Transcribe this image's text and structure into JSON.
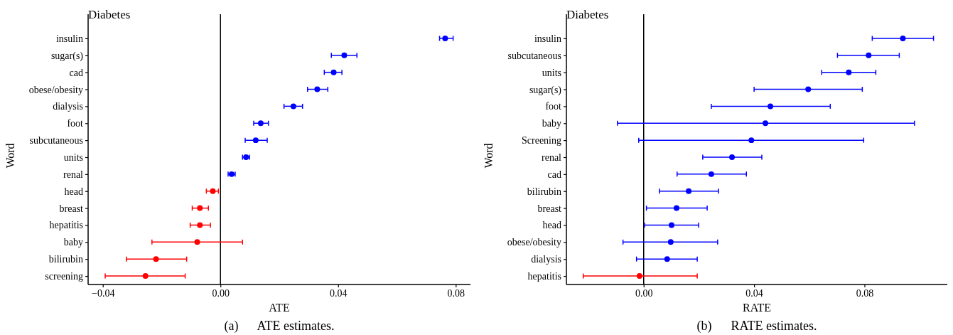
{
  "chart_data": [
    {
      "type": "scatter",
      "orientation": "horizontal",
      "marker": "circle",
      "title": "Diabetes",
      "xlabel": "ATE",
      "ylabel": "Word",
      "categories": [
        "insulin",
        "sugar(s)",
        "cad",
        "obese/obesity",
        "dialysis",
        "foot",
        "subcutaneous",
        "units",
        "renal",
        "head",
        "breast",
        "hepatitis",
        "baby",
        "bilirubin",
        "screening"
      ],
      "values": [
        0.0764,
        0.0421,
        0.0385,
        0.0329,
        0.0248,
        0.0137,
        0.012,
        0.0087,
        0.0038,
        -0.0026,
        -0.007,
        -0.007,
        -0.0079,
        -0.0219,
        -0.0255
      ],
      "errors": [
        [
          0.0745,
          0.0791
        ],
        [
          0.0377,
          0.0464
        ],
        [
          0.0353,
          0.0413
        ],
        [
          0.0296,
          0.0365
        ],
        [
          0.0216,
          0.0279
        ],
        [
          0.0113,
          0.0163
        ],
        [
          0.0084,
          0.0159
        ],
        [
          0.0075,
          0.0099
        ],
        [
          0.0026,
          0.005
        ],
        [
          -0.0048,
          -0.0007
        ],
        [
          -0.0096,
          -0.0041
        ],
        [
          -0.0103,
          -0.0034
        ],
        [
          -0.0233,
          0.0075
        ],
        [
          -0.032,
          -0.0115
        ],
        [
          -0.0392,
          -0.012
        ]
      ],
      "colors": [
        "#0000ff",
        "#0000ff",
        "#0000ff",
        "#0000ff",
        "#0000ff",
        "#0000ff",
        "#0000ff",
        "#0000ff",
        "#0000ff",
        "#ff0000",
        "#ff0000",
        "#ff0000",
        "#ff0000",
        "#ff0000",
        "#ff0000"
      ],
      "xlim": [
        -0.045,
        0.085
      ],
      "xticks": [
        {
          "value": -0.04,
          "label": "−0.04"
        },
        {
          "value": 0,
          "label": "0.00"
        },
        {
          "value": 0.04,
          "label": "0.04"
        },
        {
          "value": 0.08,
          "label": "0.08"
        }
      ],
      "ref_lines": [
        {
          "axis": "x",
          "value": 0,
          "color": "#000000"
        }
      ],
      "annotations": [
        "(a)      ATE estimates."
      ]
    },
    {
      "type": "scatter",
      "orientation": "horizontal",
      "marker": "circle",
      "title": "Diabetes",
      "xlabel": "RATE",
      "ylabel": "Word",
      "categories": [
        "insulin",
        "subcutaneous",
        "units",
        "sugar(s)",
        "foot",
        "baby",
        "Screening",
        "renal",
        "cad",
        "bilirubin",
        "breast",
        "head",
        "obese/obesity",
        "dialysis",
        "hepatitis"
      ],
      "values": [
        0.0939,
        0.0815,
        0.0743,
        0.0596,
        0.0459,
        0.0441,
        0.039,
        0.032,
        0.0245,
        0.0163,
        0.0119,
        0.0101,
        0.0098,
        0.0085,
        -0.0015
      ],
      "errors": [
        [
          0.0828,
          0.105
        ],
        [
          0.0702,
          0.0926
        ],
        [
          0.0645,
          0.0841
        ],
        [
          0.04,
          0.0792
        ],
        [
          0.0245,
          0.0676
        ],
        [
          -0.0095,
          0.0981
        ],
        [
          -0.0018,
          0.0797
        ],
        [
          0.0214,
          0.0428
        ],
        [
          0.0121,
          0.0372
        ],
        [
          0.0057,
          0.0271
        ],
        [
          0.001,
          0.023
        ],
        [
          0.0003,
          0.0199
        ],
        [
          -0.0075,
          0.0268
        ],
        [
          -0.0026,
          0.0194
        ],
        [
          -0.0219,
          0.0194
        ]
      ],
      "colors": [
        "#0000ff",
        "#0000ff",
        "#0000ff",
        "#0000ff",
        "#0000ff",
        "#0000ff",
        "#0000ff",
        "#0000ff",
        "#0000ff",
        "#0000ff",
        "#0000ff",
        "#0000ff",
        "#0000ff",
        "#0000ff",
        "#ff0000"
      ],
      "xlim": [
        -0.028,
        0.11
      ],
      "xticks": [
        {
          "value": 0,
          "label": "0.00"
        },
        {
          "value": 0.04,
          "label": "0.04"
        },
        {
          "value": 0.08,
          "label": "0.08"
        }
      ],
      "ref_lines": [
        {
          "axis": "x",
          "value": 0,
          "color": "#000000"
        }
      ],
      "annotations": [
        "(b)      RATE estimates."
      ]
    }
  ]
}
